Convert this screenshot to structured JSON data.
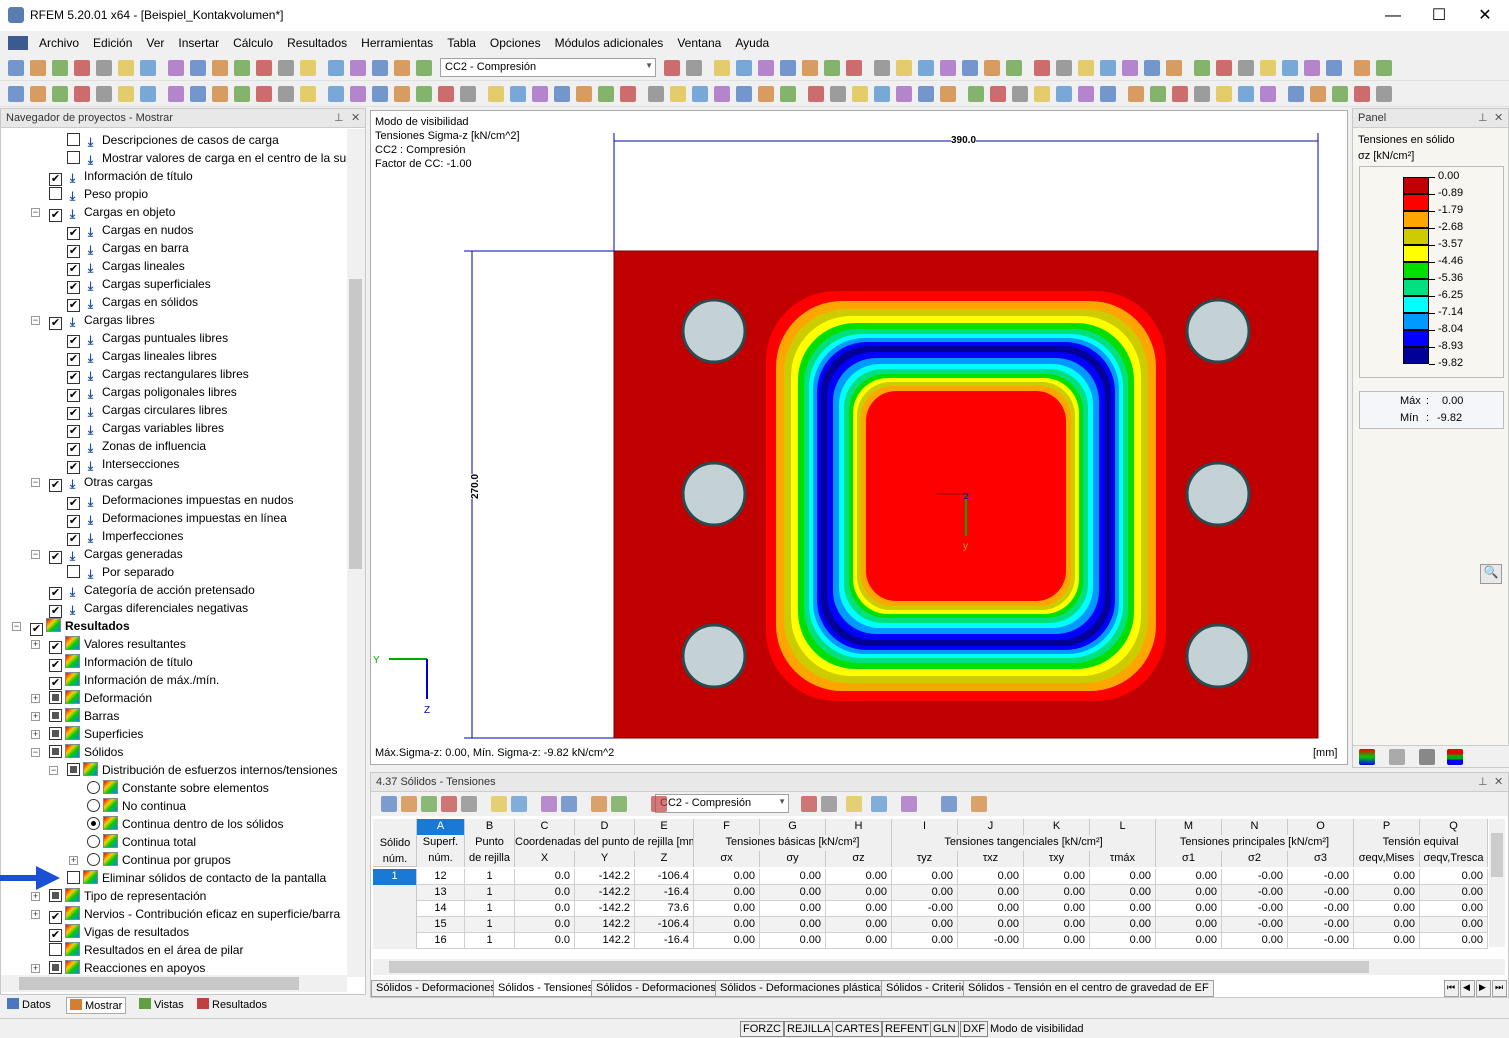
{
  "window": {
    "title": "RFEM 5.20.01 x64 - [Beispiel_Kontakvolumen*]",
    "minimize": "—",
    "maximize": "☐",
    "close": "✕"
  },
  "menu": [
    "Archivo",
    "Edición",
    "Ver",
    "Insertar",
    "Cálculo",
    "Resultados",
    "Herramientas",
    "Tabla",
    "Opciones",
    "Módulos adicionales",
    "Ventana",
    "Ayuda"
  ],
  "toolbar": {
    "load_case": "CC2 - Compresión"
  },
  "navigator": {
    "title": "Navegador de proyectos - Mostrar",
    "items": [
      {
        "label": "Descripciones de casos de carga",
        "level": 3,
        "state": "off",
        "icon": "load"
      },
      {
        "label": "Mostrar valores de carga en el centro de la sup",
        "level": 3,
        "state": "off",
        "icon": "load"
      },
      {
        "label": "Información de título",
        "level": 2,
        "state": "on",
        "icon": "load"
      },
      {
        "label": "Peso propio",
        "level": 2,
        "state": "off",
        "icon": "load"
      },
      {
        "label": "Cargas en objeto",
        "level": 2,
        "state": "on",
        "icon": "load",
        "expand": "-"
      },
      {
        "label": "Cargas en nudos",
        "level": 3,
        "state": "on",
        "icon": "load"
      },
      {
        "label": "Cargas en barra",
        "level": 3,
        "state": "on",
        "icon": "load"
      },
      {
        "label": "Cargas lineales",
        "level": 3,
        "state": "on",
        "icon": "load"
      },
      {
        "label": "Cargas superficiales",
        "level": 3,
        "state": "on",
        "icon": "load"
      },
      {
        "label": "Cargas en sólidos",
        "level": 3,
        "state": "on",
        "icon": "load"
      },
      {
        "label": "Cargas libres",
        "level": 2,
        "state": "on",
        "icon": "load",
        "expand": "-"
      },
      {
        "label": "Cargas puntuales libres",
        "level": 3,
        "state": "on",
        "icon": "load"
      },
      {
        "label": "Cargas lineales libres",
        "level": 3,
        "state": "on",
        "icon": "load"
      },
      {
        "label": "Cargas rectangulares libres",
        "level": 3,
        "state": "on",
        "icon": "load"
      },
      {
        "label": "Cargas poligonales libres",
        "level": 3,
        "state": "on",
        "icon": "load"
      },
      {
        "label": "Cargas circulares libres",
        "level": 3,
        "state": "on",
        "icon": "load"
      },
      {
        "label": "Cargas variables libres",
        "level": 3,
        "state": "on",
        "icon": "load"
      },
      {
        "label": "Zonas de influencia",
        "level": 3,
        "state": "on",
        "icon": "load"
      },
      {
        "label": "Intersecciones",
        "level": 3,
        "state": "on",
        "icon": "load"
      },
      {
        "label": "Otras cargas",
        "level": 2,
        "state": "on",
        "icon": "load",
        "expand": "-"
      },
      {
        "label": "Deformaciones impuestas en nudos",
        "level": 3,
        "state": "on",
        "icon": "load"
      },
      {
        "label": "Deformaciones impuestas en línea",
        "level": 3,
        "state": "on",
        "icon": "load"
      },
      {
        "label": "Imperfecciones",
        "level": 3,
        "state": "on",
        "icon": "load"
      },
      {
        "label": "Cargas generadas",
        "level": 2,
        "state": "on",
        "icon": "load",
        "expand": "-"
      },
      {
        "label": "Por separado",
        "level": 3,
        "state": "off",
        "icon": "load"
      },
      {
        "label": "Categoría de acción pretensado",
        "level": 2,
        "state": "on",
        "icon": "load"
      },
      {
        "label": "Cargas diferenciales negativas",
        "level": 2,
        "state": "on",
        "icon": "load"
      },
      {
        "label": "Resultados",
        "level": 1,
        "state": "on",
        "icon": "res",
        "expand": "-",
        "bold": true
      },
      {
        "label": "Valores resultantes",
        "level": 2,
        "state": "on",
        "icon": "res",
        "expand": "+"
      },
      {
        "label": "Información de título",
        "level": 2,
        "state": "on",
        "icon": "res"
      },
      {
        "label": "Información de máx./mín.",
        "level": 2,
        "state": "on",
        "icon": "res"
      },
      {
        "label": "Deformación",
        "level": 2,
        "state": "part",
        "icon": "res",
        "expand": "+"
      },
      {
        "label": "Barras",
        "level": 2,
        "state": "part",
        "icon": "res",
        "expand": "+"
      },
      {
        "label": "Superficies",
        "level": 2,
        "state": "part",
        "icon": "res",
        "expand": "+"
      },
      {
        "label": "Sólidos",
        "level": 2,
        "state": "part",
        "icon": "res",
        "expand": "-"
      },
      {
        "label": "Distribución de esfuerzos internos/tensiones",
        "level": 3,
        "state": "part",
        "icon": "res",
        "expand": "-"
      },
      {
        "label": "Constante sobre elementos",
        "level": 4,
        "radio": true,
        "state": "off",
        "icon": "res"
      },
      {
        "label": "No continua",
        "level": 4,
        "radio": true,
        "state": "off",
        "icon": "res"
      },
      {
        "label": "Continua dentro de los sólidos",
        "level": 4,
        "radio": true,
        "state": "on",
        "icon": "res"
      },
      {
        "label": "Continua total",
        "level": 4,
        "radio": true,
        "state": "off",
        "icon": "res"
      },
      {
        "label": "Continua por grupos",
        "level": 4,
        "radio": true,
        "state": "off",
        "icon": "res",
        "expand": "+"
      },
      {
        "label": "Eliminar sólidos de contacto de la pantalla",
        "level": 3,
        "state": "off",
        "icon": "res"
      },
      {
        "label": "Tipo de representación",
        "level": 2,
        "state": "part",
        "icon": "res",
        "expand": "+"
      },
      {
        "label": "Nervios - Contribución eficaz en superficie/barra",
        "level": 2,
        "state": "on",
        "icon": "res",
        "expand": "+"
      },
      {
        "label": "Vigas de resultados",
        "level": 2,
        "state": "on",
        "icon": "res"
      },
      {
        "label": "Resultados en el área de pilar",
        "level": 2,
        "state": "off",
        "icon": "res"
      },
      {
        "label": "Reacciones en apoyos",
        "level": 2,
        "state": "part",
        "icon": "res",
        "expand": "+"
      }
    ],
    "tabs": [
      "Datos",
      "Mostrar",
      "Vistas",
      "Resultados"
    ]
  },
  "viewport": {
    "info": [
      "Modo de visibilidad",
      "Tensiones Sigma-z [kN/cm^2]",
      "CC2 : Compresión",
      "Factor de CC: -1.00"
    ],
    "dim_width": "390.0",
    "dim_height": "270.0",
    "footer": "Máx.Sigma-z: 0.00, Mín. Sigma-z: -9.82 kN/cm^2",
    "units": "[mm]",
    "axis_y": "Y",
    "axis_z": "Z",
    "axis_y2": "y",
    "axis_z2": "z"
  },
  "panel": {
    "title": "Panel",
    "heading": "Tensiones en sólido",
    "unit": "σz [kN/cm²]",
    "legend_values": [
      "0.00",
      "-0.89",
      "-1.79",
      "-2.68",
      "-3.57",
      "-4.46",
      "-5.36",
      "-6.25",
      "-7.14",
      "-8.04",
      "-8.93",
      "-9.82"
    ],
    "legend_colors": [
      "#c00000",
      "#ff0000",
      "#ffa500",
      "#cccc00",
      "#ffff00",
      "#00e000",
      "#00e080",
      "#00ffff",
      "#0099ff",
      "#0000ff",
      "#000099"
    ],
    "max_label": "Máx",
    "max_value": "0.00",
    "min_label": "Mín",
    "min_value": "-9.82"
  },
  "table": {
    "title": "4.37 Sólidos - Tensiones",
    "load_case": "CC2 - Compresión",
    "letters": [
      "A",
      "B",
      "C",
      "D",
      "E",
      "F",
      "G",
      "H",
      "I",
      "J",
      "K",
      "L",
      "M",
      "N",
      "O",
      "P",
      "Q"
    ],
    "row_header": [
      "Sólido",
      "núm."
    ],
    "groups": [
      {
        "label": "Superf.",
        "sub": "núm.",
        "span": 1
      },
      {
        "label": "Punto",
        "sub": "de rejilla",
        "span": 1
      },
      {
        "label": "Coordenadas del punto de rejilla [mm]",
        "span": 3
      },
      {
        "label": "Tensiones básicas [kN/cm²]",
        "span": 3
      },
      {
        "label": "Tensiones tangenciales [kN/cm²]",
        "span": 4
      },
      {
        "label": "Tensiones principales [kN/cm²]",
        "span": 3
      },
      {
        "label": "Tensión equival",
        "span": 2
      }
    ],
    "subs": [
      "",
      "",
      "X",
      "Y",
      "Z",
      "σx",
      "σy",
      "σz",
      "τyz",
      "τxz",
      "τxy",
      "τmáx",
      "σ1",
      "σ2",
      "σ3",
      "σeqv,Mises",
      "σeqv,Tresca"
    ],
    "rows": [
      {
        "solid": "1",
        "cells": [
          "12",
          "1",
          "0.0",
          "-142.2",
          "-106.4",
          "0.00",
          "0.00",
          "0.00",
          "0.00",
          "0.00",
          "0.00",
          "0.00",
          "0.00",
          "-0.00",
          "-0.00",
          "0.00",
          "0.00"
        ]
      },
      {
        "solid": "",
        "cells": [
          "13",
          "1",
          "0.0",
          "-142.2",
          "-16.4",
          "0.00",
          "0.00",
          "0.00",
          "0.00",
          "0.00",
          "0.00",
          "0.00",
          "0.00",
          "-0.00",
          "-0.00",
          "0.00",
          "0.00"
        ]
      },
      {
        "solid": "",
        "cells": [
          "14",
          "1",
          "0.0",
          "-142.2",
          "73.6",
          "0.00",
          "0.00",
          "0.00",
          "-0.00",
          "0.00",
          "0.00",
          "0.00",
          "0.00",
          "-0.00",
          "-0.00",
          "0.00",
          "0.00"
        ]
      },
      {
        "solid": "",
        "cells": [
          "15",
          "1",
          "0.0",
          "142.2",
          "-106.4",
          "0.00",
          "0.00",
          "0.00",
          "0.00",
          "0.00",
          "0.00",
          "0.00",
          "0.00",
          "-0.00",
          "-0.00",
          "0.00",
          "0.00"
        ]
      },
      {
        "solid": "",
        "cells": [
          "16",
          "1",
          "0.0",
          "142.2",
          "-16.4",
          "0.00",
          "0.00",
          "0.00",
          "0.00",
          "-0.00",
          "0.00",
          "0.00",
          "0.00",
          "0.00",
          "-0.00",
          "0.00",
          "0.00"
        ]
      }
    ],
    "tabs": [
      "Sólidos - Deformaciones",
      "Sólidos - Tensiones",
      "Sólidos - Deformaciones",
      "Sólidos - Deformaciones plásticas",
      "Sólidos - Criterio",
      "Sólidos - Tensión en el centro de gravedad de EF"
    ]
  },
  "status": [
    "FORZC",
    "REJILLA",
    "CARTES",
    "REFENT",
    "GLN",
    "DXF"
  ],
  "status_text": "Modo de visibilidad"
}
